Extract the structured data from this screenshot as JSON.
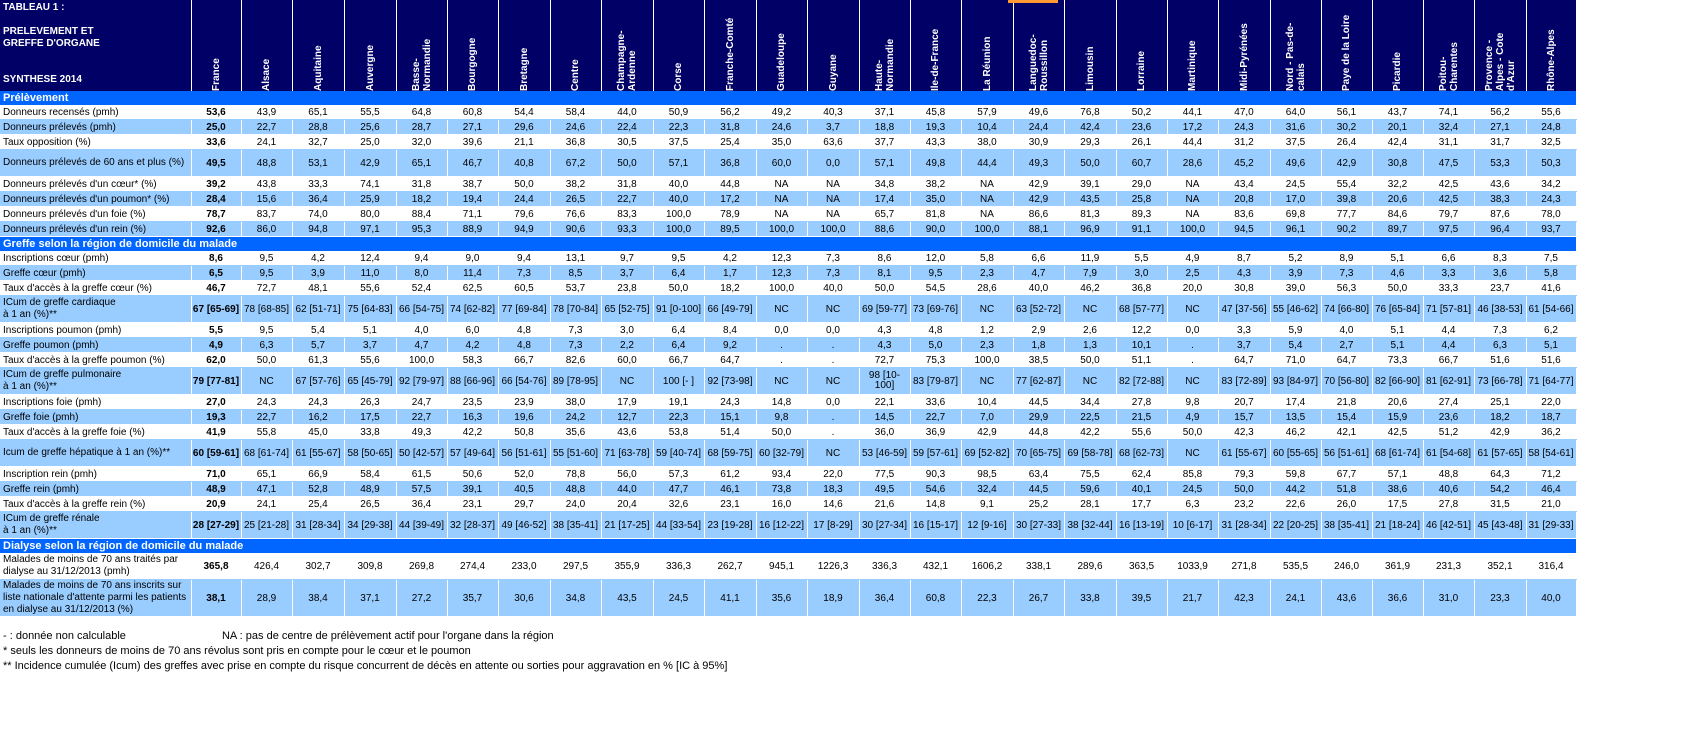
{
  "title_block": "TABLEAU 1 :\n\nPRELEVEMENT ET\nGREFFE D'ORGANE\n\n\nSYNTHESE 2014",
  "regions": [
    "France",
    "Alsace",
    "Aquitaine",
    "Auvergne",
    "Basse-\nNormandie",
    "Bourgogne",
    "Bretagne",
    "Centre",
    "Champagne-\nArdenne",
    "Corse",
    "Franche-Comté",
    "Guadeloupe",
    "Guyane",
    "Haute-\nNormandie",
    "Ile-de-France",
    "La Réunion",
    "Languedoc-\nRoussillon",
    "Limousin",
    "Lorraine",
    "Martinique",
    "Midi-Pyrénées",
    "Nord - Pas-de-\ncalais",
    "Paye de la Loire",
    "Picardie",
    "Poitou-\nCharentes",
    "Provence -\nAlpes - Cote\nd'Azur",
    "Rhône-Alpes"
  ],
  "sections": [
    {
      "title": "Prélèvement",
      "rows": [
        {
          "label": "Donneurs recensés (pmh)",
          "h": 1,
          "values": [
            "53,6",
            "43,9",
            "65,1",
            "55,5",
            "64,8",
            "60,8",
            "54,4",
            "58,4",
            "44,0",
            "50,9",
            "56,2",
            "49,2",
            "40,3",
            "37,1",
            "45,8",
            "57,9",
            "49,6",
            "76,8",
            "50,2",
            "44,1",
            "47,0",
            "64,0",
            "56,1",
            "43,7",
            "74,1",
            "56,2",
            "55,6"
          ]
        },
        {
          "label": "Donneurs prélevés (pmh)",
          "h": 1,
          "values": [
            "25,0",
            "22,7",
            "28,8",
            "25,6",
            "28,7",
            "27,1",
            "29,6",
            "24,6",
            "22,4",
            "22,3",
            "31,8",
            "24,6",
            "3,7",
            "18,8",
            "19,3",
            "10,4",
            "24,4",
            "42,4",
            "23,6",
            "17,2",
            "24,3",
            "31,6",
            "30,2",
            "20,1",
            "32,4",
            "27,1",
            "24,8"
          ]
        },
        {
          "label": "Taux opposition (%)",
          "h": 1,
          "values": [
            "33,6",
            "24,1",
            "32,7",
            "25,0",
            "32,0",
            "39,6",
            "21,1",
            "36,8",
            "30,5",
            "37,5",
            "25,4",
            "35,0",
            "63,6",
            "37,7",
            "43,3",
            "38,0",
            "30,9",
            "29,3",
            "26,1",
            "44,4",
            "31,2",
            "37,5",
            "26,4",
            "42,4",
            "31,1",
            "31,7",
            "32,5"
          ]
        },
        {
          "label": "Donneurs prélevés de 60 ans et plus (%)",
          "h": 2,
          "values": [
            "49,5",
            "48,8",
            "53,1",
            "42,9",
            "65,1",
            "46,7",
            "40,8",
            "67,2",
            "50,0",
            "57,1",
            "36,8",
            "60,0",
            "0,0",
            "57,1",
            "49,8",
            "44,4",
            "49,3",
            "50,0",
            "60,7",
            "28,6",
            "45,2",
            "49,6",
            "42,9",
            "30,8",
            "47,5",
            "53,3",
            "50,3"
          ]
        },
        {
          "label": "Donneurs prélevés d'un cœur* (%)",
          "h": 1,
          "values": [
            "39,2",
            "43,8",
            "33,3",
            "74,1",
            "31,8",
            "38,7",
            "50,0",
            "38,2",
            "31,8",
            "40,0",
            "44,8",
            "NA",
            "NA",
            "34,8",
            "38,2",
            "NA",
            "42,9",
            "39,1",
            "29,0",
            "NA",
            "43,4",
            "24,5",
            "55,4",
            "32,2",
            "42,5",
            "43,6",
            "34,2"
          ]
        },
        {
          "label": "Donneurs prélevés d'un poumon* (%)",
          "h": 1,
          "values": [
            "28,4",
            "15,6",
            "36,4",
            "25,9",
            "18,2",
            "19,4",
            "24,4",
            "26,5",
            "22,7",
            "40,0",
            "17,2",
            "NA",
            "NA",
            "17,4",
            "35,0",
            "NA",
            "42,9",
            "43,5",
            "25,8",
            "NA",
            "20,8",
            "17,0",
            "39,8",
            "20,6",
            "42,5",
            "38,3",
            "24,3"
          ]
        },
        {
          "label": "Donneurs prélevés d'un foie (%)",
          "h": 1,
          "values": [
            "78,7",
            "83,7",
            "74,0",
            "80,0",
            "88,4",
            "71,1",
            "79,6",
            "76,6",
            "83,3",
            "100,0",
            "78,9",
            "NA",
            "NA",
            "65,7",
            "81,8",
            "NA",
            "86,6",
            "81,3",
            "89,3",
            "NA",
            "83,6",
            "69,8",
            "77,7",
            "84,6",
            "79,7",
            "87,6",
            "78,0"
          ]
        },
        {
          "label": "Donneurs prélevés d'un rein (%)",
          "h": 1,
          "values": [
            "92,6",
            "86,0",
            "94,8",
            "97,1",
            "95,3",
            "88,9",
            "94,9",
            "90,6",
            "93,3",
            "100,0",
            "89,5",
            "100,0",
            "100,0",
            "88,6",
            "90,0",
            "100,0",
            "88,1",
            "96,9",
            "91,1",
            "100,0",
            "94,5",
            "96,1",
            "90,2",
            "89,7",
            "97,5",
            "96,4",
            "93,7"
          ]
        }
      ]
    },
    {
      "title": "Greffe selon la région de domicile du malade",
      "rows": [
        {
          "label": "Inscriptions cœur (pmh)",
          "h": 1,
          "values": [
            "8,6",
            "9,5",
            "4,2",
            "12,4",
            "9,4",
            "9,0",
            "9,4",
            "13,1",
            "9,7",
            "9,5",
            "4,2",
            "12,3",
            "7,3",
            "8,6",
            "12,0",
            "5,8",
            "6,6",
            "11,9",
            "5,5",
            "4,9",
            "8,7",
            "5,2",
            "8,9",
            "5,1",
            "6,6",
            "8,3",
            "7,5"
          ]
        },
        {
          "label": "Greffe cœur (pmh)",
          "h": 1,
          "values": [
            "6,5",
            "9,5",
            "3,9",
            "11,0",
            "8,0",
            "11,4",
            "7,3",
            "8,5",
            "3,7",
            "6,4",
            "1,7",
            "12,3",
            "7,3",
            "8,1",
            "9,5",
            "2,3",
            "4,7",
            "7,9",
            "3,0",
            "2,5",
            "4,3",
            "3,9",
            "7,3",
            "4,6",
            "3,3",
            "3,6",
            "5,8"
          ]
        },
        {
          "label": "Taux d'accès à la greffe cœur (%)",
          "h": 1,
          "values": [
            "46,7",
            "72,7",
            "48,1",
            "55,6",
            "52,4",
            "62,5",
            "60,5",
            "53,7",
            "23,8",
            "50,0",
            "18,2",
            "100,0",
            "40,0",
            "50,0",
            "54,5",
            "28,6",
            "40,0",
            "46,2",
            "36,8",
            "20,0",
            "30,8",
            "39,0",
            "56,3",
            "50,0",
            "33,3",
            "23,7",
            "41,6"
          ]
        },
        {
          "label": "ICum de greffe cardiaque\nà 1 an (%)**",
          "h": 2,
          "values": [
            "67 [65-69]",
            "78 [68-85]",
            "62 [51-71]",
            "75 [64-83]",
            "66 [54-75]",
            "74 [62-82]",
            "77 [69-84]",
            "78 [70-84]",
            "65 [52-75]",
            "91 [0-100]",
            "66 [49-79]",
            "NC",
            "NC",
            "69 [59-77]",
            "73 [69-76]",
            "NC",
            "63 [52-72]",
            "NC",
            "68 [57-77]",
            "NC",
            "47 [37-56]",
            "55 [46-62]",
            "74 [66-80]",
            "76 [65-84]",
            "71 [57-81]",
            "46 [38-53]",
            "61 [54-66]"
          ]
        },
        {
          "label": "Inscriptions poumon (pmh)",
          "h": 1,
          "values": [
            "5,5",
            "9,5",
            "5,4",
            "5,1",
            "4,0",
            "6,0",
            "4,8",
            "7,3",
            "3,0",
            "6,4",
            "8,4",
            "0,0",
            "0,0",
            "4,3",
            "4,8",
            "1,2",
            "2,9",
            "2,6",
            "12,2",
            "0,0",
            "3,3",
            "5,9",
            "4,0",
            "5,1",
            "4,4",
            "7,3",
            "6,2"
          ]
        },
        {
          "label": "Greffe poumon (pmh)",
          "h": 1,
          "values": [
            "4,9",
            "6,3",
            "5,7",
            "3,7",
            "4,7",
            "4,2",
            "4,8",
            "7,3",
            "2,2",
            "6,4",
            "9,2",
            ".",
            ".",
            "4,3",
            "5,0",
            "2,3",
            "1,8",
            "1,3",
            "10,1",
            ".",
            "3,7",
            "5,4",
            "2,7",
            "5,1",
            "4,4",
            "6,3",
            "5,1"
          ]
        },
        {
          "label": "Taux d'accès à la greffe poumon (%)",
          "h": 1,
          "values": [
            "62,0",
            "50,0",
            "61,3",
            "55,6",
            "100,0",
            "58,3",
            "66,7",
            "82,6",
            "60,0",
            "66,7",
            "64,7",
            ".",
            ".",
            "72,7",
            "75,3",
            "100,0",
            "38,5",
            "50,0",
            "51,1",
            ".",
            "64,7",
            "71,0",
            "64,7",
            "73,3",
            "66,7",
            "51,6",
            "51,6"
          ]
        },
        {
          "label": "ICum de greffe pulmonaire\nà 1 an (%)**",
          "h": 2,
          "values": [
            "79 [77-81]",
            "NC",
            "67 [57-76]",
            "65 [45-79]",
            "92 [79-97]",
            "88 [66-96]",
            "66 [54-76]",
            "89 [78-95]",
            "NC",
            "100 [- ]",
            "92 [73-98]",
            "NC",
            "NC",
            "98 [10-\n100]",
            "83 [79-87]",
            "NC",
            "77 [62-87]",
            "NC",
            "82 [72-88]",
            "NC",
            "83 [72-89]",
            "93 [84-97]",
            "70 [56-80]",
            "82 [66-90]",
            "81 [62-91]",
            "73 [66-78]",
            "71 [64-77]"
          ]
        },
        {
          "label": "Inscriptions foie (pmh)",
          "h": 1,
          "values": [
            "27,0",
            "24,3",
            "24,3",
            "26,3",
            "24,7",
            "23,5",
            "23,9",
            "38,0",
            "17,9",
            "19,1",
            "24,3",
            "14,8",
            "0,0",
            "22,1",
            "33,6",
            "10,4",
            "44,5",
            "34,4",
            "27,8",
            "9,8",
            "20,7",
            "17,4",
            "21,8",
            "20,6",
            "27,4",
            "25,1",
            "22,0"
          ]
        },
        {
          "label": "Greffe foie (pmh)",
          "h": 1,
          "values": [
            "19,3",
            "22,7",
            "16,2",
            "17,5",
            "22,7",
            "16,3",
            "19,6",
            "24,2",
            "12,7",
            "22,3",
            "15,1",
            "9,8",
            ".",
            "14,5",
            "22,7",
            "7,0",
            "29,9",
            "22,5",
            "21,5",
            "4,9",
            "15,7",
            "13,5",
            "15,4",
            "15,9",
            "23,6",
            "18,2",
            "18,7"
          ]
        },
        {
          "label": "Taux d'accès à la greffe foie (%)",
          "h": 1,
          "values": [
            "41,9",
            "55,8",
            "45,0",
            "33,8",
            "49,3",
            "42,2",
            "50,8",
            "35,6",
            "43,6",
            "53,8",
            "51,4",
            "50,0",
            ".",
            "36,0",
            "36,9",
            "42,9",
            "44,8",
            "42,2",
            "55,6",
            "50,0",
            "42,3",
            "46,2",
            "42,1",
            "42,5",
            "51,2",
            "42,9",
            "36,2"
          ]
        },
        {
          "label": "Icum de greffe hépatique à 1 an (%)**",
          "h": 2,
          "values": [
            "60 [59-61]",
            "68 [61-74]",
            "61 [55-67]",
            "58 [50-65]",
            "50 [42-57]",
            "57 [49-64]",
            "56 [51-61]",
            "55 [51-60]",
            "71 [63-78]",
            "59 [40-74]",
            "68 [59-75]",
            "60 [32-79]",
            "NC",
            "53 [46-59]",
            "59 [57-61]",
            "69 [52-82]",
            "70 [65-75]",
            "69 [58-78]",
            "68 [62-73]",
            "NC",
            "61 [55-67]",
            "60 [55-65]",
            "56 [51-61]",
            "68 [61-74]",
            "61 [54-68]",
            "61 [57-65]",
            "58 [54-61]"
          ]
        },
        {
          "label": "Inscription rein (pmh)",
          "h": 1,
          "values": [
            "71,0",
            "65,1",
            "66,9",
            "58,4",
            "61,5",
            "50,6",
            "52,0",
            "78,8",
            "56,0",
            "57,3",
            "61,2",
            "93,4",
            "22,0",
            "77,5",
            "90,3",
            "98,5",
            "63,4",
            "75,5",
            "62,4",
            "85,8",
            "79,3",
            "59,8",
            "67,7",
            "57,1",
            "48,8",
            "64,3",
            "71,2"
          ]
        },
        {
          "label": "Greffe rein (pmh)",
          "h": 1,
          "values": [
            "48,9",
            "47,1",
            "52,8",
            "48,9",
            "57,5",
            "39,1",
            "40,5",
            "48,8",
            "44,0",
            "47,7",
            "46,1",
            "73,8",
            "18,3",
            "49,5",
            "54,6",
            "32,4",
            "44,5",
            "59,6",
            "40,1",
            "24,5",
            "50,0",
            "44,2",
            "51,8",
            "38,6",
            "40,6",
            "54,2",
            "46,4"
          ]
        },
        {
          "label": "Taux d'accès à la greffe rein (%)",
          "h": 1,
          "values": [
            "20,9",
            "24,1",
            "25,4",
            "26,5",
            "36,4",
            "23,1",
            "29,7",
            "24,0",
            "20,4",
            "32,6",
            "23,1",
            "16,0",
            "14,6",
            "21,6",
            "14,8",
            "9,1",
            "25,2",
            "28,1",
            "17,7",
            "6,3",
            "23,2",
            "22,6",
            "26,0",
            "17,5",
            "27,8",
            "31,5",
            "21,0"
          ]
        },
        {
          "label": "ICum de greffe rénale\nà 1 an (%)**",
          "h": 2,
          "values": [
            "28 [27-29]",
            "25 [21-28]",
            "31 [28-34]",
            "34 [29-38]",
            "44 [39-49]",
            "32 [28-37]",
            "49 [46-52]",
            "38 [35-41]",
            "21 [17-25]",
            "44 [33-54]",
            "23 [19-28]",
            "16 [12-22]",
            "17 [8-29]",
            "30 [27-34]",
            "16 [15-17]",
            "12 [9-16]",
            "30 [27-33]",
            "38 [32-44]",
            "16 [13-19]",
            "10 [6-17]",
            "31 [28-34]",
            "22 [20-25]",
            "38 [35-41]",
            "21 [18-24]",
            "46 [42-51]",
            "45 [43-48]",
            "31 [29-33]"
          ]
        }
      ]
    },
    {
      "title": "Dialyse selon la région de domicile du malade",
      "rows": [
        {
          "label": "Malades de moins de 70 ans traités par\ndialyse au 31/12/2013 (pmh)",
          "h": 2,
          "values": [
            "365,8",
            "426,4",
            "302,7",
            "309,8",
            "269,8",
            "274,4",
            "233,0",
            "297,5",
            "355,9",
            "336,3",
            "262,7",
            "945,1",
            "1226,3",
            "336,3",
            "432,1",
            "1606,2",
            "338,1",
            "289,6",
            "363,5",
            "1033,9",
            "271,8",
            "535,5",
            "246,0",
            "361,9",
            "231,3",
            "352,1",
            "316,4"
          ]
        },
        {
          "label": "Malades de moins de 70 ans inscrits sur\nliste nationale d'attente parmi les patients\nen dialyse au 31/12/2013 (%)",
          "h": 3,
          "values": [
            "38,1",
            "28,9",
            "38,4",
            "37,1",
            "27,2",
            "35,7",
            "30,6",
            "34,8",
            "43,5",
            "24,5",
            "41,1",
            "35,6",
            "18,9",
            "36,4",
            "60,8",
            "22,3",
            "26,7",
            "33,8",
            "39,5",
            "21,7",
            "42,3",
            "24,1",
            "43,6",
            "36,6",
            "31,0",
            "23,3",
            "40,0"
          ]
        }
      ]
    }
  ],
  "footnotes": {
    "dash": "- : donnée non calculable",
    "na": "NA : pas de centre de prélèvement actif pour l'organe dans la région",
    "star": "* seuls les donneurs de moins de 70 ans révolus sont pris en compte pour  le cœur et le poumon",
    "dstar": "** Incidence cumulée (Icum) des greffes avec prise en compte du risque concurrent de décès en attente ou sorties pour aggravation en % [IC à 95%]"
  },
  "colors": {
    "header_bg": "#000066",
    "section_bg": "#0066ff",
    "stripe": "#99ccff",
    "accent": "#ff9933"
  }
}
